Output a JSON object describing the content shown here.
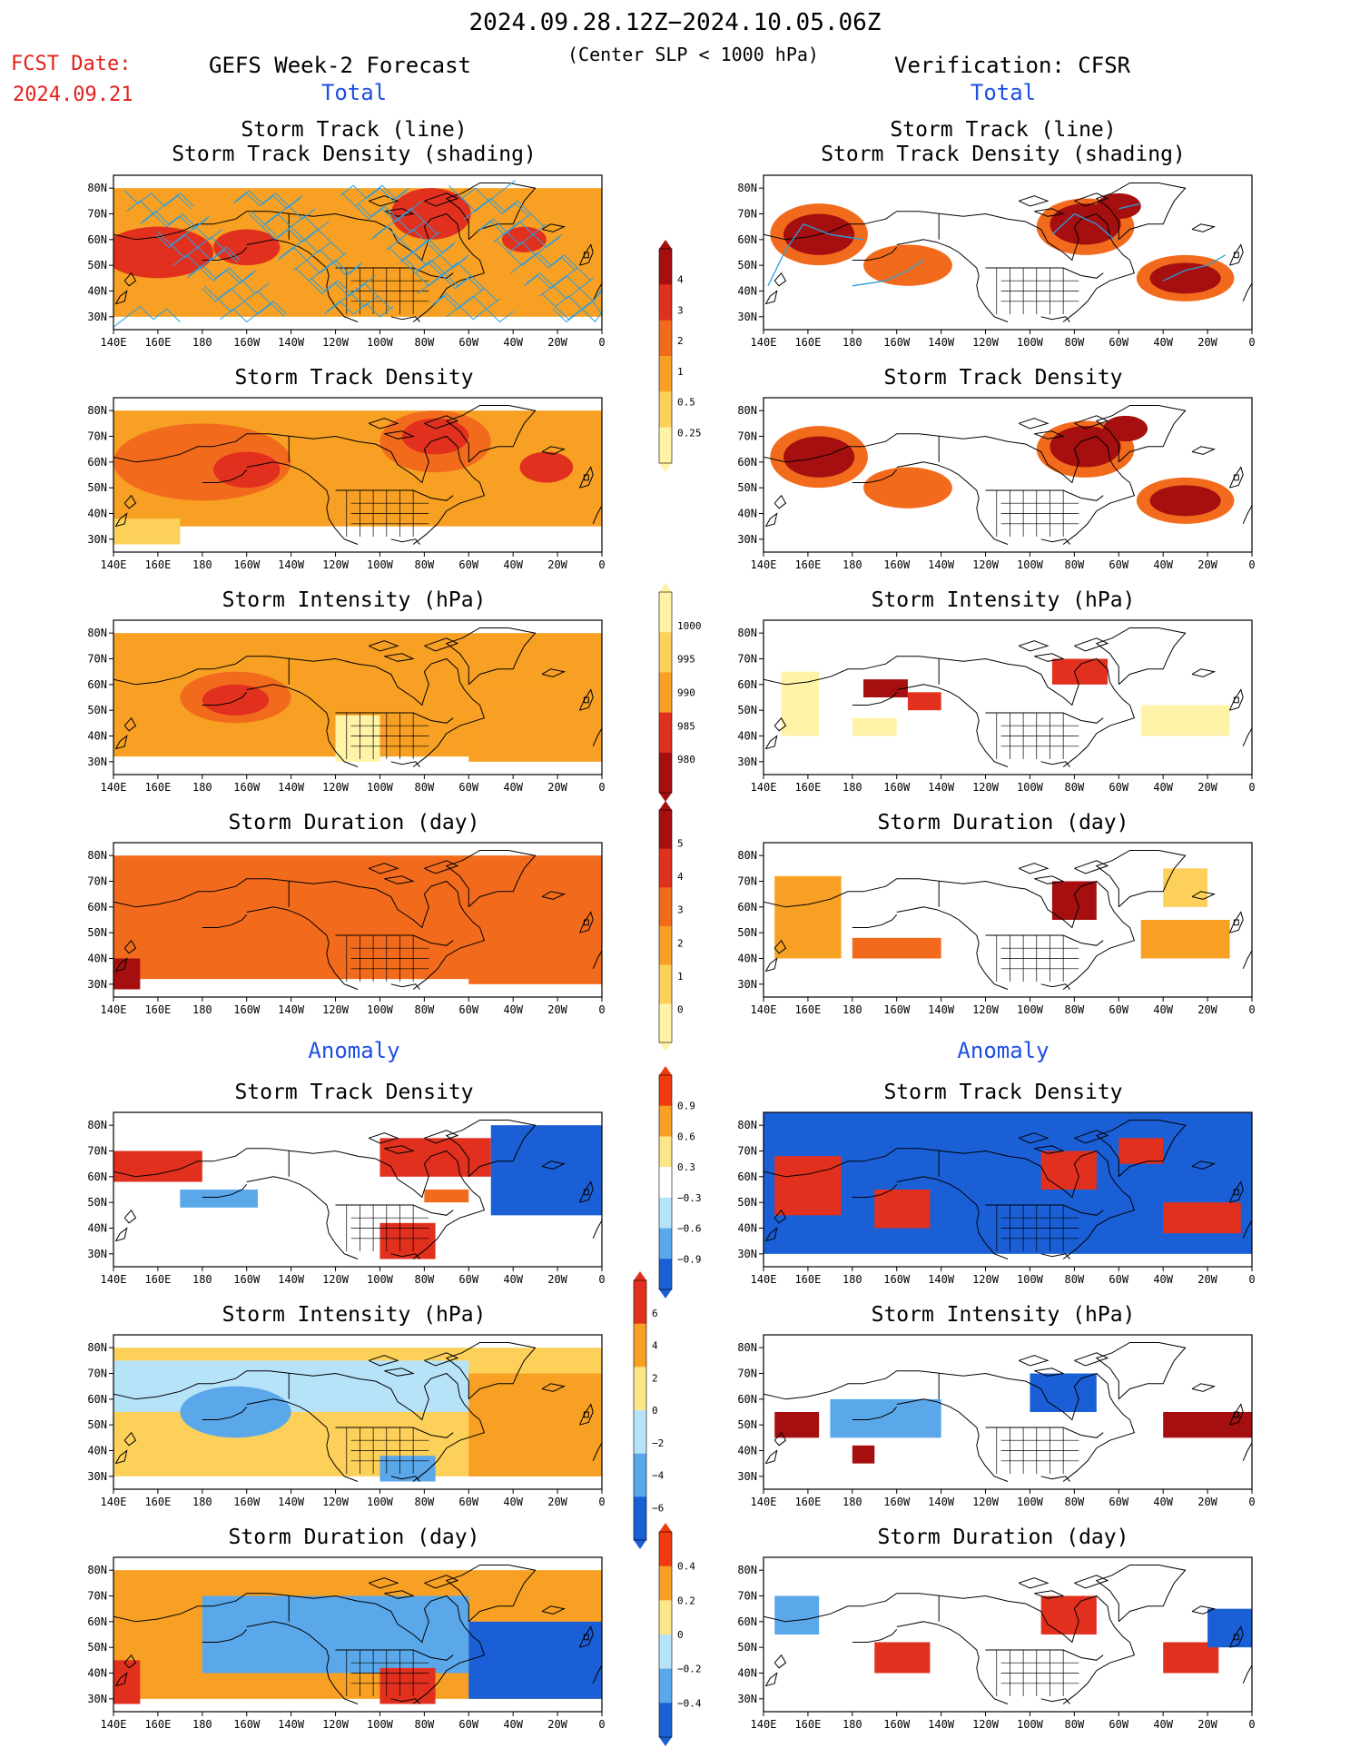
{
  "header": {
    "date_range": "2024.09.28.12Z−2024.10.05.06Z",
    "subtitle": "(Center SLP < 1000 hPa)",
    "fcst_label": "FCST Date:",
    "fcst_date": "2024.09.21",
    "left_title": "GEFS Week-2 Forecast",
    "right_title": "Verification: CFSR"
  },
  "sections": {
    "total": "Total",
    "anomaly": "Anomaly"
  },
  "panel_titles": {
    "track": "Storm Track (line)",
    "track_density_shading": "Storm Track Density (shading)",
    "density": "Storm Track Density",
    "intensity": "Storm Intensity (hPa)",
    "duration": "Storm Duration (day)"
  },
  "axes": {
    "lat_labels": [
      "80N",
      "70N",
      "60N",
      "50N",
      "40N",
      "30N"
    ],
    "lon_labels": [
      "140E",
      "160E",
      "180",
      "160W",
      "140W",
      "120W",
      "100W",
      "80W",
      "60W",
      "40W",
      "20W",
      "0"
    ]
  },
  "colorbars": {
    "density": {
      "labels": [
        "4",
        "3",
        "2",
        "1",
        "0.5",
        "0.25"
      ],
      "colors": [
        "#a50f0f",
        "#e1301e",
        "#f26b1d",
        "#f7a023",
        "#fdd05a",
        "#fff3a8"
      ]
    },
    "intensity": {
      "labels": [
        "1000",
        "995",
        "990",
        "985",
        "980"
      ],
      "colors": [
        "#fff3a8",
        "#fdd05a",
        "#f7a023",
        "#e1301e",
        "#a50f0f"
      ]
    },
    "duration": {
      "labels": [
        "5",
        "4",
        "3",
        "2",
        "1",
        "0"
      ],
      "colors": [
        "#a50f0f",
        "#e1301e",
        "#f26b1d",
        "#f7a023",
        "#fdd05a",
        "#fff3a8"
      ]
    },
    "anom_density": {
      "labels": [
        "0.9",
        "0.6",
        "0.3",
        "−0.3",
        "−0.6",
        "−0.9"
      ],
      "colors": [
        "#ef3b0f",
        "#f7a023",
        "#fde58a",
        "#ffffff",
        "#b7e3f8",
        "#5aa7ea",
        "#1a5fd6"
      ]
    },
    "anom_intensity": {
      "labels": [
        "6",
        "4",
        "2",
        "0",
        "−2",
        "−4",
        "−6"
      ],
      "colors": [
        "#e1301e",
        "#f7a023",
        "#fde58a",
        "#b7e3f8",
        "#5aa7ea",
        "#1a5fd6"
      ]
    },
    "anom_duration": {
      "labels": [
        "0.4",
        "0.2",
        "0",
        "−0.2",
        "−0.4"
      ],
      "colors": [
        "#ef3b0f",
        "#f7a023",
        "#fde58a",
        "#b7e3f8",
        "#5aa7ea",
        "#1a5fd6"
      ]
    }
  }
}
